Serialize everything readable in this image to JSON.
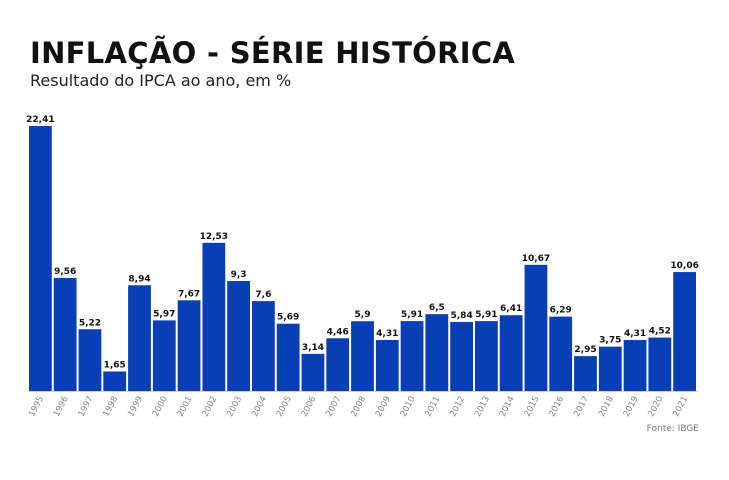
{
  "header": {
    "title": "INFLAÇÃO - SÉRIE HISTÓRICA",
    "subtitle": "Resultado do IPCA ao ano, em %"
  },
  "footer": {
    "source": "Fonte: IBGE"
  },
  "colors": {
    "bar": "#0a3eb4",
    "value_label": "#111111",
    "tick_label": "#888888"
  },
  "chart_data": {
    "type": "bar",
    "categories": [
      "1995",
      "1996",
      "1997",
      "1998",
      "1999",
      "2000",
      "2001",
      "2002",
      "2003",
      "2004",
      "2005",
      "2006",
      "2007",
      "2008",
      "2009",
      "2010",
      "2011",
      "2012",
      "2013",
      "2014",
      "2015",
      "2016",
      "2017",
      "2018",
      "2019",
      "2020",
      "2021"
    ],
    "values": [
      22.41,
      9.56,
      5.22,
      1.65,
      8.94,
      5.97,
      7.67,
      12.53,
      9.3,
      7.6,
      5.69,
      3.14,
      4.46,
      5.9,
      4.31,
      5.91,
      6.5,
      5.84,
      5.91,
      6.41,
      10.67,
      6.29,
      2.95,
      3.75,
      4.31,
      4.52,
      10.06
    ],
    "value_labels": [
      "22,41",
      "9,56",
      "5,22",
      "1,65",
      "8,94",
      "5,97",
      "7,67",
      "12,53",
      "9,3",
      "7,6",
      "5,69",
      "3,14",
      "4,46",
      "5,9",
      "4,31",
      "5,91",
      "6,5",
      "5,84",
      "5,91",
      "6,41",
      "10,67",
      "6,29",
      "2,95",
      "3,75",
      "4,31",
      "4,52",
      "10,06"
    ],
    "title": "INFLAÇÃO - SÉRIE HISTÓRICA",
    "subtitle": "Resultado do IPCA ao ano, em %",
    "xlabel": "",
    "ylabel": "",
    "ylim": [
      0,
      22.41
    ],
    "grid": false,
    "legend": false
  }
}
